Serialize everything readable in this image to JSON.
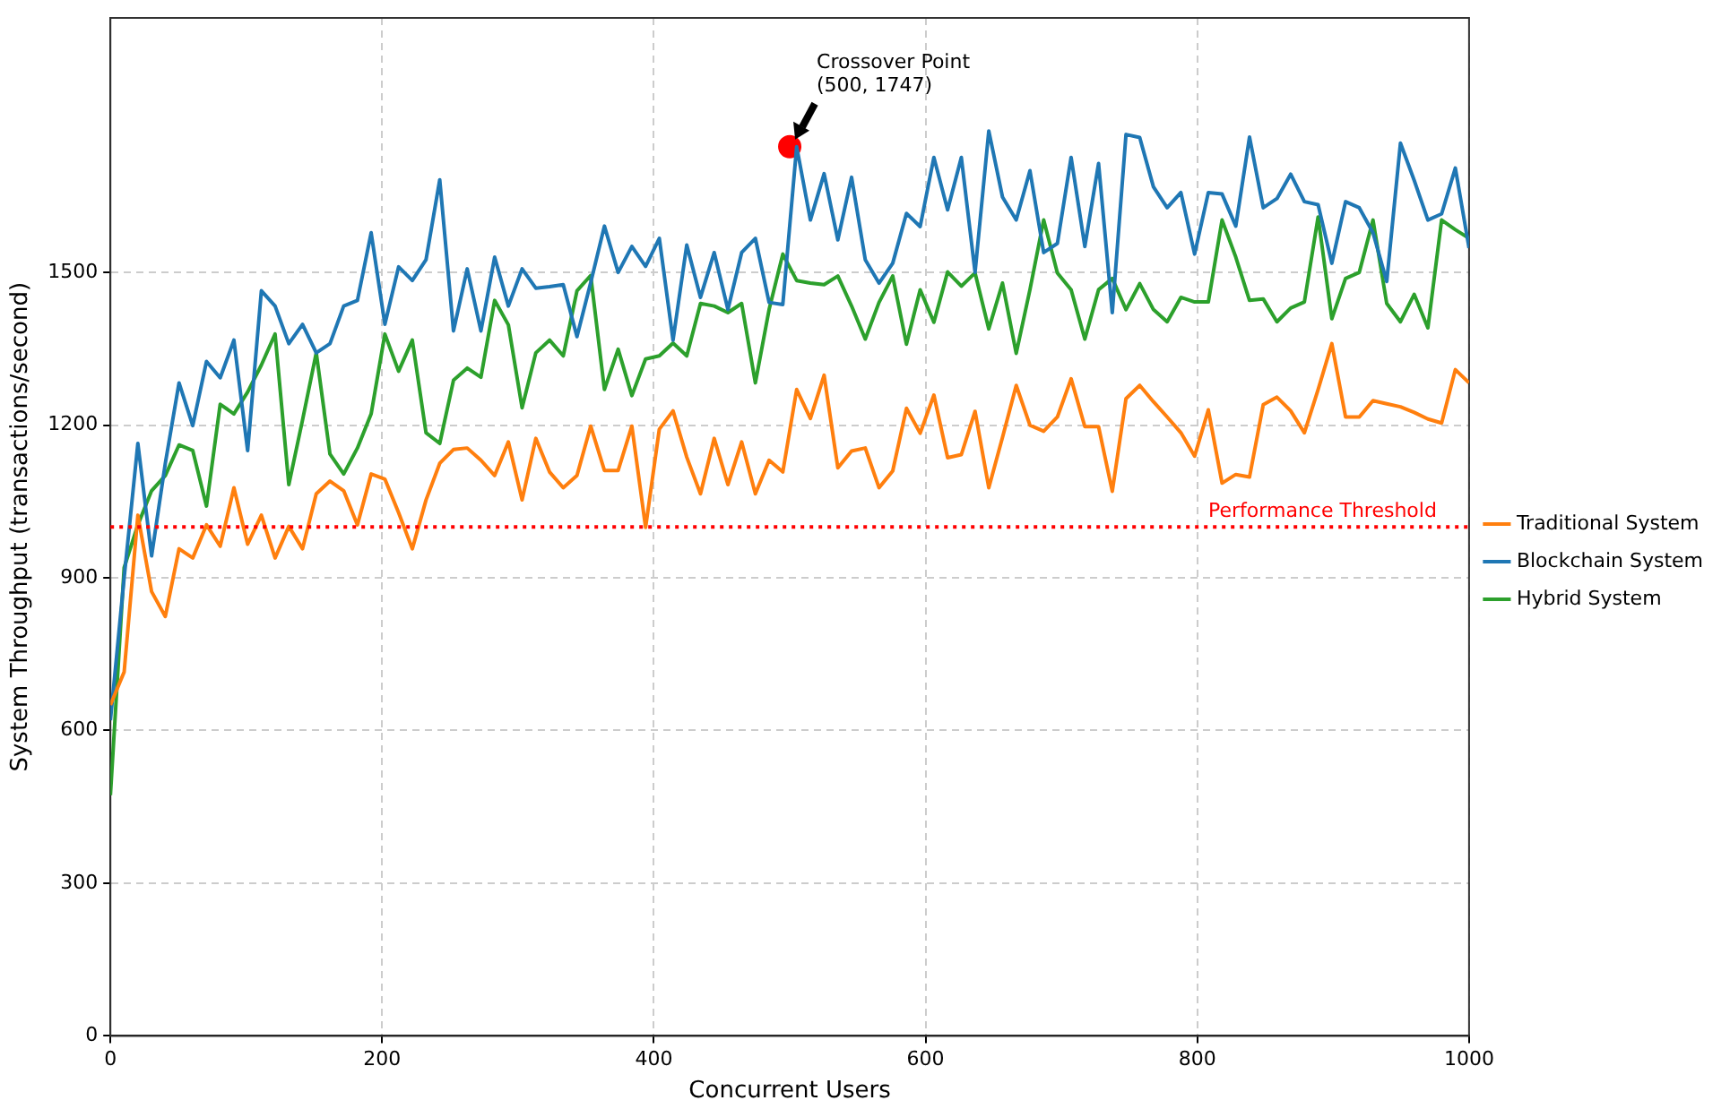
{
  "chart_data": {
    "type": "line",
    "xlabel": "Concurrent Users",
    "ylabel": "System Throughput (transactions/second)",
    "x": [
      0,
      10.1,
      20.2,
      30.3,
      40.4,
      50.5,
      60.6,
      70.7,
      80.8,
      90.9,
      101,
      111.1,
      121.2,
      131.3,
      141.4,
      151.5,
      161.6,
      171.7,
      181.8,
      191.9,
      202,
      212.1,
      222.2,
      232.3,
      242.4,
      252.5,
      262.6,
      272.7,
      282.8,
      292.9,
      303,
      313.1,
      323.2,
      333.3,
      343.4,
      353.5,
      363.6,
      373.7,
      383.8,
      393.9,
      404,
      414.1,
      424.2,
      434.3,
      444.4,
      454.5,
      464.6,
      474.7,
      484.8,
      494.9,
      505.1,
      515.2,
      525.3,
      535.4,
      545.5,
      555.6,
      565.7,
      575.8,
      585.9,
      596,
      606.1,
      616.2,
      626.3,
      636.4,
      646.5,
      656.6,
      666.7,
      676.8,
      686.9,
      697,
      707.1,
      717.2,
      727.3,
      737.4,
      747.5,
      757.6,
      767.7,
      777.8,
      787.9,
      798,
      808.1,
      818.2,
      828.3,
      838.4,
      848.5,
      858.6,
      868.7,
      878.8,
      888.9,
      899,
      909.1,
      919.2,
      929.3,
      939.4,
      949.5,
      959.6,
      969.7,
      979.8,
      989.9,
      1000
    ],
    "series": [
      {
        "name": "Traditional System",
        "color": "#ff7f0e",
        "values": [
          650,
          715,
          1023,
          873,
          824,
          957,
          939,
          1004,
          962,
          1077,
          966,
          1023,
          939,
          1001,
          957,
          1065,
          1090,
          1071,
          1004,
          1104,
          1094,
          1028,
          957,
          1053,
          1125,
          1152,
          1155,
          1131,
          1101,
          1167,
          1053,
          1174,
          1108,
          1077,
          1101,
          1198,
          1111,
          1111,
          1198,
          999,
          1192,
          1228,
          1137,
          1065,
          1174,
          1083,
          1167,
          1065,
          1131,
          1108,
          1270,
          1213,
          1298,
          1116,
          1149,
          1155,
          1077,
          1110,
          1233,
          1184,
          1259,
          1136,
          1142,
          1227,
          1077,
          1176,
          1278,
          1200,
          1188,
          1216,
          1291,
          1197,
          1197,
          1070,
          1252,
          1278,
          1246,
          1216,
          1185,
          1139,
          1230,
          1086,
          1103,
          1098,
          1240,
          1255,
          1228,
          1185,
          1270,
          1360,
          1216,
          1216,
          1248,
          1242,
          1236,
          1225,
          1212,
          1204,
          1309,
          1283
        ]
      },
      {
        "name": "Blockchain System",
        "color": "#1f77b4",
        "values": [
          620,
          900,
          1164,
          943,
          1125,
          1283,
          1199,
          1325,
          1293,
          1367,
          1150,
          1464,
          1434,
          1360,
          1398,
          1342,
          1360,
          1434,
          1445,
          1578,
          1398,
          1511,
          1484,
          1525,
          1682,
          1385,
          1507,
          1385,
          1530,
          1434,
          1507,
          1469,
          1472,
          1476,
          1374,
          1480,
          1591,
          1500,
          1551,
          1512,
          1567,
          1367,
          1554,
          1451,
          1539,
          1427,
          1539,
          1567,
          1441,
          1437,
          1747,
          1603,
          1694,
          1564,
          1687,
          1525,
          1479,
          1518,
          1616,
          1590,
          1726,
          1623,
          1726,
          1500,
          1778,
          1648,
          1603,
          1700,
          1539,
          1557,
          1726,
          1551,
          1714,
          1421,
          1771,
          1765,
          1668,
          1627,
          1657,
          1536,
          1657,
          1654,
          1591,
          1766,
          1627,
          1645,
          1693,
          1639,
          1633,
          1518,
          1639,
          1627,
          1578,
          1482,
          1754,
          1681,
          1603,
          1615,
          1705,
          1548
        ]
      },
      {
        "name": "Hybrid System",
        "color": "#2ca02c",
        "values": [
          473,
          920,
          1004,
          1071,
          1101,
          1161,
          1150,
          1041,
          1241,
          1222,
          1265,
          1318,
          1379,
          1083,
          1210,
          1342,
          1143,
          1104,
          1155,
          1222,
          1379,
          1306,
          1367,
          1185,
          1164,
          1288,
          1312,
          1294,
          1445,
          1397,
          1234,
          1342,
          1367,
          1336,
          1464,
          1494,
          1270,
          1349,
          1258,
          1330,
          1336,
          1361,
          1336,
          1439,
          1434,
          1421,
          1439,
          1283,
          1427,
          1536,
          1484,
          1479,
          1476,
          1493,
          1434,
          1369,
          1441,
          1493,
          1359,
          1466,
          1402,
          1501,
          1473,
          1499,
          1389,
          1479,
          1341,
          1466,
          1603,
          1499,
          1466,
          1369,
          1466,
          1488,
          1427,
          1478,
          1427,
          1403,
          1451,
          1442,
          1442,
          1603,
          1530,
          1445,
          1448,
          1403,
          1430,
          1442,
          1609,
          1409,
          1488,
          1500,
          1603,
          1439,
          1403,
          1457,
          1391,
          1603,
          1584,
          1567
        ]
      },
      {
        "type": "scatter",
        "color": "#ff0000",
        "marker": "circle",
        "x": [
          500
        ],
        "values": [
          1747
        ]
      }
    ],
    "xlim": [
      0,
      1000
    ],
    "xticks": [
      0,
      200,
      400,
      600,
      800,
      1000
    ],
    "ylim": [
      0,
      2000
    ],
    "yticks": [
      0,
      300,
      600,
      900,
      1200,
      1500
    ],
    "ref_lines": [
      {
        "axis": "y",
        "value": 1000,
        "label": "Performance Threshold",
        "color": "#ff0000",
        "line_style": "dotted"
      }
    ],
    "annotations": [
      {
        "text": "Crossover Point\n(500, 1747)",
        "x": 500,
        "y": 1747
      }
    ],
    "grid": true,
    "legend": "right",
    "marker": "none",
    "line_style": "solid"
  }
}
